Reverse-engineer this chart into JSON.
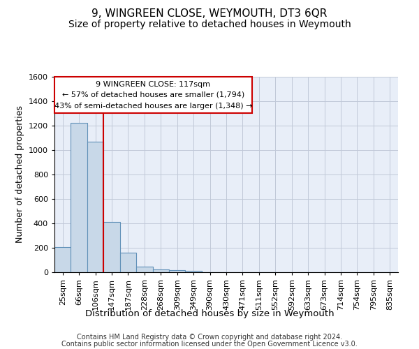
{
  "title": "9, WINGREEN CLOSE, WEYMOUTH, DT3 6QR",
  "subtitle": "Size of property relative to detached houses in Weymouth",
  "xlabel": "Distribution of detached houses by size in Weymouth",
  "ylabel": "Number of detached properties",
  "footer_line1": "Contains HM Land Registry data © Crown copyright and database right 2024.",
  "footer_line2": "Contains public sector information licensed under the Open Government Licence v3.0.",
  "categories": [
    "25sqm",
    "66sqm",
    "106sqm",
    "147sqm",
    "187sqm",
    "228sqm",
    "268sqm",
    "309sqm",
    "349sqm",
    "390sqm",
    "430sqm",
    "471sqm",
    "511sqm",
    "552sqm",
    "592sqm",
    "633sqm",
    "673sqm",
    "714sqm",
    "754sqm",
    "795sqm",
    "835sqm"
  ],
  "values": [
    205,
    1225,
    1070,
    410,
    160,
    45,
    25,
    15,
    10,
    0,
    0,
    0,
    0,
    0,
    0,
    0,
    0,
    0,
    0,
    0,
    0
  ],
  "bar_color": "#c8d8e8",
  "bar_edge_color": "#6090b8",
  "bar_edge_width": 0.8,
  "grid_color": "#c0c8d8",
  "bg_color": "#e8eef8",
  "ylim": [
    0,
    1600
  ],
  "yticks": [
    0,
    200,
    400,
    600,
    800,
    1000,
    1200,
    1400,
    1600
  ],
  "vline_x_index": 2.5,
  "vline_color": "#cc0000",
  "annotation_line1": "9 WINGREEN CLOSE: 117sqm",
  "annotation_line2": "← 57% of detached houses are smaller (1,794)",
  "annotation_line3": "43% of semi-detached houses are larger (1,348) →",
  "annotation_box_color": "#cc0000",
  "annotation_bg": "#ffffff",
  "title_fontsize": 11,
  "subtitle_fontsize": 10,
  "xlabel_fontsize": 9.5,
  "ylabel_fontsize": 9,
  "tick_fontsize": 8,
  "annotation_fontsize": 8
}
